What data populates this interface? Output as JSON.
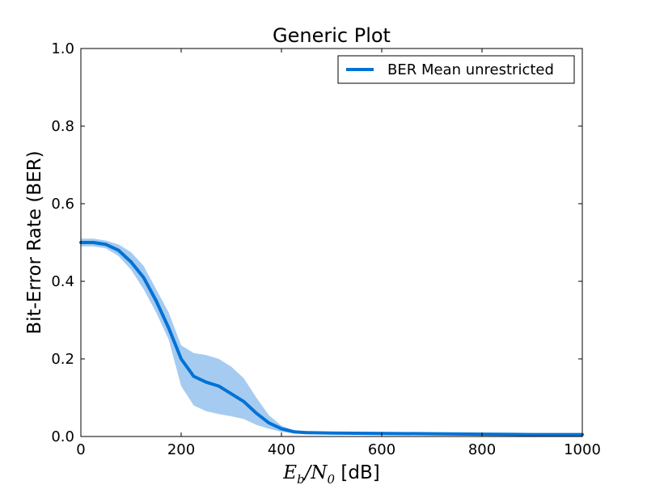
{
  "chart_data": {
    "type": "line",
    "title": "Generic Plot",
    "xlabel": {
      "math_base": "E",
      "math_sub_b": "b",
      "math_slash": "/",
      "math_base2": "N",
      "math_sub_0": "0",
      "unit": " [dB]"
    },
    "ylabel": "Bit-Error Rate (BER)",
    "xlim": [
      0,
      1000
    ],
    "ylim": [
      0.0,
      1.0
    ],
    "x_tick_labels": [
      "0",
      "200",
      "400",
      "600",
      "800",
      "1000"
    ],
    "y_tick_labels": [
      "0.0",
      "0.2",
      "0.4",
      "0.6",
      "0.8",
      "1.0"
    ],
    "x_ticks": [
      0,
      200,
      400,
      600,
      800,
      1000
    ],
    "y_ticks": [
      0.0,
      0.2,
      0.4,
      0.6,
      0.8,
      1.0
    ],
    "grid": false,
    "legend_position": "top-right",
    "series": [
      {
        "name": "BER Mean unrestricted",
        "color": "#0072d6",
        "band_color": "#a6cbf0",
        "x": [
          0,
          25,
          50,
          75,
          100,
          125,
          150,
          175,
          200,
          225,
          250,
          275,
          300,
          325,
          350,
          375,
          400,
          425,
          450,
          500,
          600,
          700,
          800,
          900,
          1000
        ],
        "mean": [
          0.5,
          0.5,
          0.495,
          0.48,
          0.45,
          0.41,
          0.35,
          0.28,
          0.2,
          0.155,
          0.14,
          0.13,
          0.11,
          0.09,
          0.06,
          0.035,
          0.02,
          0.012,
          0.01,
          0.009,
          0.008,
          0.007,
          0.006,
          0.005,
          0.005
        ],
        "upper": [
          0.51,
          0.51,
          0.505,
          0.495,
          0.475,
          0.44,
          0.38,
          0.32,
          0.235,
          0.215,
          0.21,
          0.2,
          0.18,
          0.15,
          0.1,
          0.055,
          0.028,
          0.016,
          0.013,
          0.012,
          0.011,
          0.01,
          0.009,
          0.008,
          0.008
        ],
        "lower": [
          0.49,
          0.49,
          0.485,
          0.465,
          0.43,
          0.38,
          0.32,
          0.25,
          0.13,
          0.08,
          0.065,
          0.058,
          0.052,
          0.045,
          0.03,
          0.02,
          0.012,
          0.008,
          0.007,
          0.006,
          0.005,
          0.004,
          0.003,
          0.002,
          0.002
        ]
      }
    ]
  }
}
